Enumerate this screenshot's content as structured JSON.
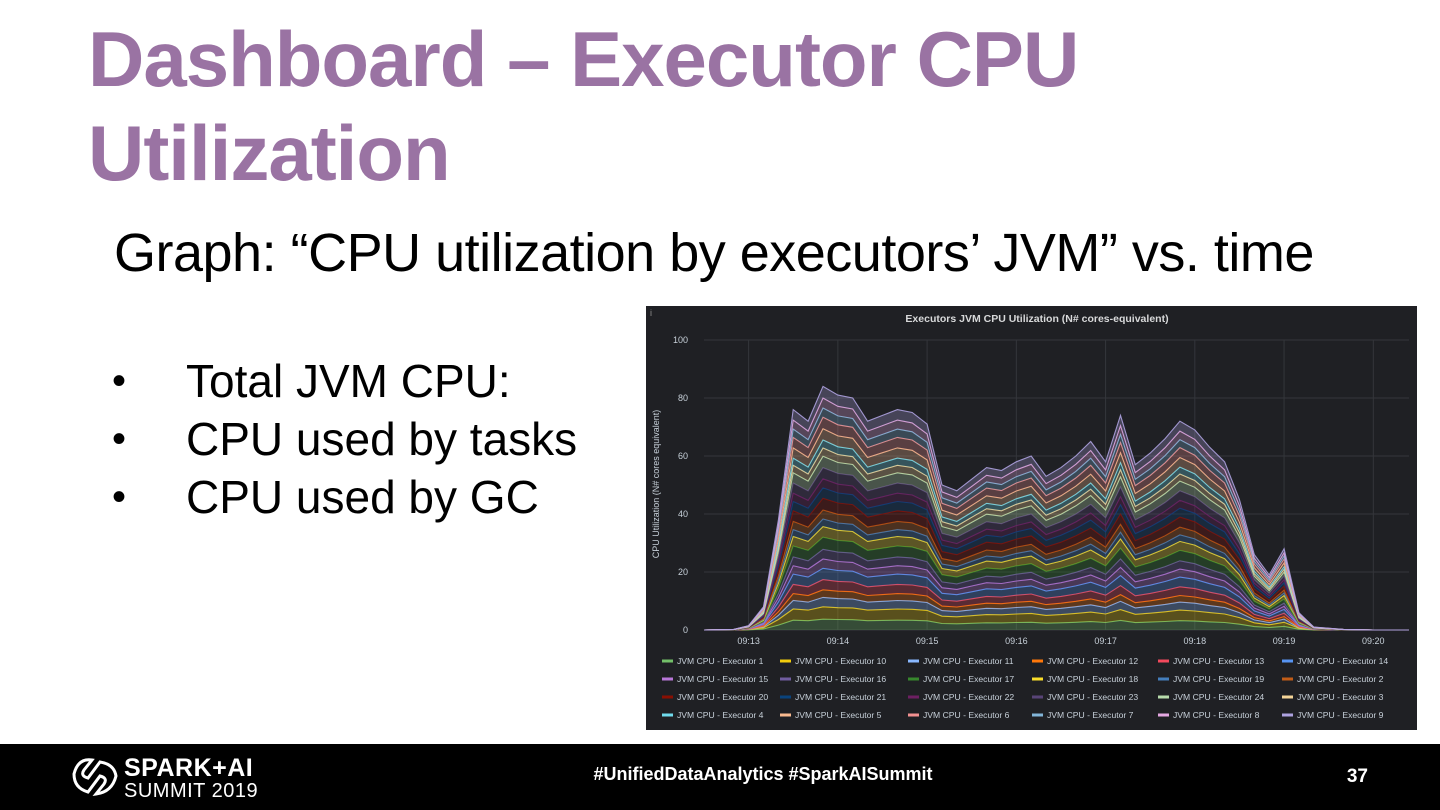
{
  "slide": {
    "title": "Dashboard – Executor CPU Utilization",
    "subtitle": "Graph: “CPU utilization by executors’ JVM” vs. time",
    "bullets": [
      "Total JVM CPU:",
      "CPU used by tasks",
      "CPU used by GC"
    ],
    "bullet_symbol": "•"
  },
  "footer": {
    "logo_line1": "SPARK+AI",
    "logo_line2": "SUMMIT 2019",
    "hashtags": "#UnifiedDataAnalytics #SparkAISummit",
    "page_number": "37"
  },
  "panel": {
    "info_glyph": "i"
  },
  "chart_data": {
    "type": "area",
    "stacked": true,
    "title": "Executors JVM CPU Utilization (N# cores-equivalent)",
    "ylabel": "CPU Utilization (N# cores equivalent)",
    "xlabel": "",
    "ylim": [
      0,
      100
    ],
    "yticks": [
      0,
      20,
      40,
      60,
      80,
      100
    ],
    "xlim": [
      "09:12:30",
      "09:20:24"
    ],
    "xticks": [
      "09:13",
      "09:14",
      "09:15",
      "09:16",
      "09:17",
      "09:18",
      "09:19",
      "09:20"
    ],
    "grid": true,
    "legend_position": "bottom",
    "x": [
      "09:12:30",
      "09:12:50",
      "09:13:00",
      "09:13:10",
      "09:13:20",
      "09:13:30",
      "09:13:40",
      "09:13:50",
      "09:14:00",
      "09:14:10",
      "09:14:20",
      "09:14:30",
      "09:14:40",
      "09:14:50",
      "09:15:00",
      "09:15:10",
      "09:15:20",
      "09:15:30",
      "09:15:40",
      "09:15:50",
      "09:16:00",
      "09:16:10",
      "09:16:20",
      "09:16:30",
      "09:16:40",
      "09:16:50",
      "09:17:00",
      "09:17:10",
      "09:17:20",
      "09:17:30",
      "09:17:40",
      "09:17:50",
      "09:18:00",
      "09:18:10",
      "09:18:20",
      "09:18:30",
      "09:18:40",
      "09:18:50",
      "09:19:00",
      "09:19:10",
      "09:19:20",
      "09:19:40",
      "09:20:00",
      "09:20:24"
    ],
    "total": [
      0,
      0.2,
      1.5,
      8,
      38,
      76,
      72,
      84,
      81,
      80,
      72,
      74,
      76,
      75,
      71,
      50,
      48,
      52,
      56,
      55,
      58,
      60,
      53,
      56,
      60,
      65,
      58,
      74,
      57,
      61,
      66,
      72,
      69,
      63,
      58,
      45,
      26,
      19,
      28,
      6,
      1,
      0.2,
      0,
      0
    ],
    "series": [
      {
        "name": "JVM CPU - Executor 1",
        "color": "#73bf69"
      },
      {
        "name": "JVM CPU - Executor 10",
        "color": "#f2cc0c"
      },
      {
        "name": "JVM CPU - Executor 11",
        "color": "#8ab8ff"
      },
      {
        "name": "JVM CPU - Executor 12",
        "color": "#ff780a"
      },
      {
        "name": "JVM CPU - Executor 13",
        "color": "#f2495c"
      },
      {
        "name": "JVM CPU - Executor 14",
        "color": "#5794f2"
      },
      {
        "name": "JVM CPU - Executor 15",
        "color": "#b877d9"
      },
      {
        "name": "JVM CPU - Executor 16",
        "color": "#705da0"
      },
      {
        "name": "JVM CPU - Executor 17",
        "color": "#37872d"
      },
      {
        "name": "JVM CPU - Executor 18",
        "color": "#fade2a"
      },
      {
        "name": "JVM CPU - Executor 19",
        "color": "#447ebc"
      },
      {
        "name": "JVM CPU - Executor 2",
        "color": "#c15c17"
      },
      {
        "name": "JVM CPU - Executor 20",
        "color": "#890f02"
      },
      {
        "name": "JVM CPU - Executor 21",
        "color": "#0a437c"
      },
      {
        "name": "JVM CPU - Executor 22",
        "color": "#6d1f62"
      },
      {
        "name": "JVM CPU - Executor 23",
        "color": "#584477"
      },
      {
        "name": "JVM CPU - Executor 24",
        "color": "#b7dbab"
      },
      {
        "name": "JVM CPU - Executor 3",
        "color": "#f4d598"
      },
      {
        "name": "JVM CPU - Executor 4",
        "color": "#70dbed"
      },
      {
        "name": "JVM CPU - Executor 5",
        "color": "#f9ba8f"
      },
      {
        "name": "JVM CPU - Executor 6",
        "color": "#f29191"
      },
      {
        "name": "JVM CPU - Executor 7",
        "color": "#82b5d8"
      },
      {
        "name": "JVM CPU - Executor 8",
        "color": "#e5a8e2"
      },
      {
        "name": "JVM CPU - Executor 9",
        "color": "#aea2e0"
      }
    ]
  }
}
